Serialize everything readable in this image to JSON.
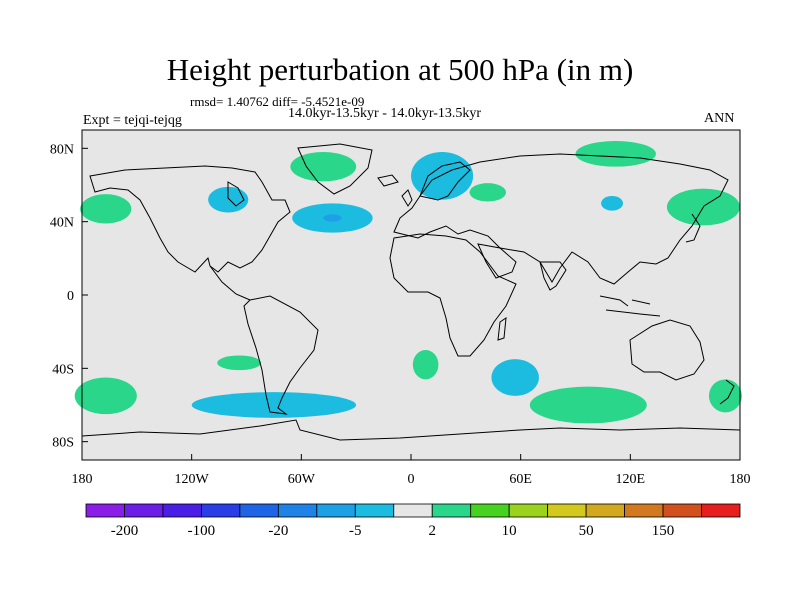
{
  "header": {
    "title": "Height perturbation at 500 hPa (in m)",
    "stats": "rmsd= 1.40762 diff= -5.4521e-09",
    "period": "14.0kyr-13.5kyr - 14.0kyr-13.5kyr",
    "expt": "Expt = tejqi-tejqg",
    "season": "ANN"
  },
  "map": {
    "projection": "cylindrical equidistant",
    "lon_range": [
      -180,
      180
    ],
    "lat_range": [
      -90,
      90
    ],
    "x_ticks": [
      {
        "lon": -180,
        "label": "180"
      },
      {
        "lon": -120,
        "label": "120W"
      },
      {
        "lon": -60,
        "label": "60W"
      },
      {
        "lon": 0,
        "label": "0"
      },
      {
        "lon": 60,
        "label": "60E"
      },
      {
        "lon": 120,
        "label": "120E"
      },
      {
        "lon": 180,
        "label": "180"
      }
    ],
    "y_ticks": [
      {
        "lat": 80,
        "label": "80N"
      },
      {
        "lat": 40,
        "label": "40N"
      },
      {
        "lat": 0,
        "label": "0"
      },
      {
        "lat": -40,
        "label": "40S"
      },
      {
        "lat": -80,
        "label": "80S"
      }
    ],
    "background_color": "#e6e6e6",
    "anomalies": [
      {
        "name": "anomaly-greenland-positive",
        "lon": -48,
        "lat": 70,
        "rlon": 18,
        "rlat": 8,
        "class": "2..5",
        "color": "#2ad68a"
      },
      {
        "name": "anomaly-canada-negative",
        "lon": -100,
        "lat": 52,
        "rlon": 11,
        "rlat": 7,
        "class": "-5..-2",
        "color": "#1cbce0"
      },
      {
        "name": "anomaly-north-atlantic-negative",
        "lon": -43,
        "lat": 42,
        "rlon": 22,
        "rlat": 8,
        "class": "-5..-2",
        "color": "#1cbce0"
      },
      {
        "name": "anomaly-north-atlantic-core",
        "lon": -43,
        "lat": 42,
        "rlon": 5,
        "rlat": 2,
        "class": "-20..-5",
        "color": "#1ea0e6"
      },
      {
        "name": "anomaly-scandinavia-negative",
        "lon": 17,
        "lat": 65,
        "rlon": 17,
        "rlat": 13,
        "class": "-5..-2",
        "color": "#1cbce0"
      },
      {
        "name": "anomaly-caspian-positive",
        "lon": 42,
        "lat": 56,
        "rlon": 10,
        "rlat": 5,
        "class": "2..5",
        "color": "#2ad68a"
      },
      {
        "name": "anomaly-arctic-siberia-positive",
        "lon": 112,
        "lat": 77,
        "rlon": 22,
        "rlat": 7,
        "class": "2..5",
        "color": "#2ad68a"
      },
      {
        "name": "anomaly-mongolia-negative",
        "lon": 110,
        "lat": 50,
        "rlon": 6,
        "rlat": 4,
        "class": "-5..-2",
        "color": "#1cbce0"
      },
      {
        "name": "anomaly-north-pacific-west-positive",
        "lon": 160,
        "lat": 48,
        "rlon": 20,
        "rlat": 10,
        "class": "2..5",
        "color": "#2ad68a"
      },
      {
        "name": "anomaly-north-pacific-east-positive",
        "lon": -167,
        "lat": 47,
        "rlon": 14,
        "rlat": 8,
        "class": "2..5",
        "color": "#2ad68a"
      },
      {
        "name": "anomaly-south-pacific-positive",
        "lon": -94,
        "lat": -37,
        "rlon": 12,
        "rlat": 4,
        "class": "2..5",
        "color": "#2ad68a"
      },
      {
        "name": "anomaly-southwest-pacific-positive",
        "lon": -167,
        "lat": -55,
        "rlon": 17,
        "rlat": 10,
        "class": "2..5",
        "color": "#2ad68a"
      },
      {
        "name": "anomaly-southeast-pacific-negative",
        "lon": -75,
        "lat": -60,
        "rlon": 45,
        "rlat": 7,
        "class": "-5..-2",
        "color": "#1cbce0"
      },
      {
        "name": "anomaly-south-atlantic-positive",
        "lon": 8,
        "lat": -38,
        "rlon": 7,
        "rlat": 8,
        "class": "2..5",
        "color": "#2ad68a"
      },
      {
        "name": "anomaly-south-indian-negative",
        "lon": 57,
        "lat": -45,
        "rlon": 13,
        "rlat": 10,
        "class": "-5..-2",
        "color": "#1cbce0"
      },
      {
        "name": "anomaly-southern-ocean-positive",
        "lon": 97,
        "lat": -60,
        "rlon": 32,
        "rlat": 10,
        "class": "2..5",
        "color": "#2ad68a"
      },
      {
        "name": "anomaly-tasman-positive",
        "lon": 172,
        "lat": -55,
        "rlon": 9,
        "rlat": 9,
        "class": "2..5",
        "color": "#2ad68a"
      }
    ]
  },
  "colorbar": {
    "colors": [
      "#8a1ee6",
      "#6a1ee6",
      "#4a1ee6",
      "#2a3ee6",
      "#1e64e6",
      "#1e82e6",
      "#1ea0e6",
      "#1cbce0",
      "#e6e6e6",
      "#2ad68a",
      "#46d21e",
      "#9ad21e",
      "#d2c81e",
      "#d2a81e",
      "#d2781e",
      "#d2501e",
      "#e61e1e"
    ],
    "labels": [
      {
        "boundary": 1,
        "text": "-200"
      },
      {
        "boundary": 3,
        "text": "-100"
      },
      {
        "boundary": 5,
        "text": "-20"
      },
      {
        "boundary": 7,
        "text": "-5"
      },
      {
        "boundary": 9,
        "text": "2"
      },
      {
        "boundary": 11,
        "text": "10"
      },
      {
        "boundary": 13,
        "text": "50"
      },
      {
        "boundary": 15,
        "text": "150"
      }
    ]
  }
}
